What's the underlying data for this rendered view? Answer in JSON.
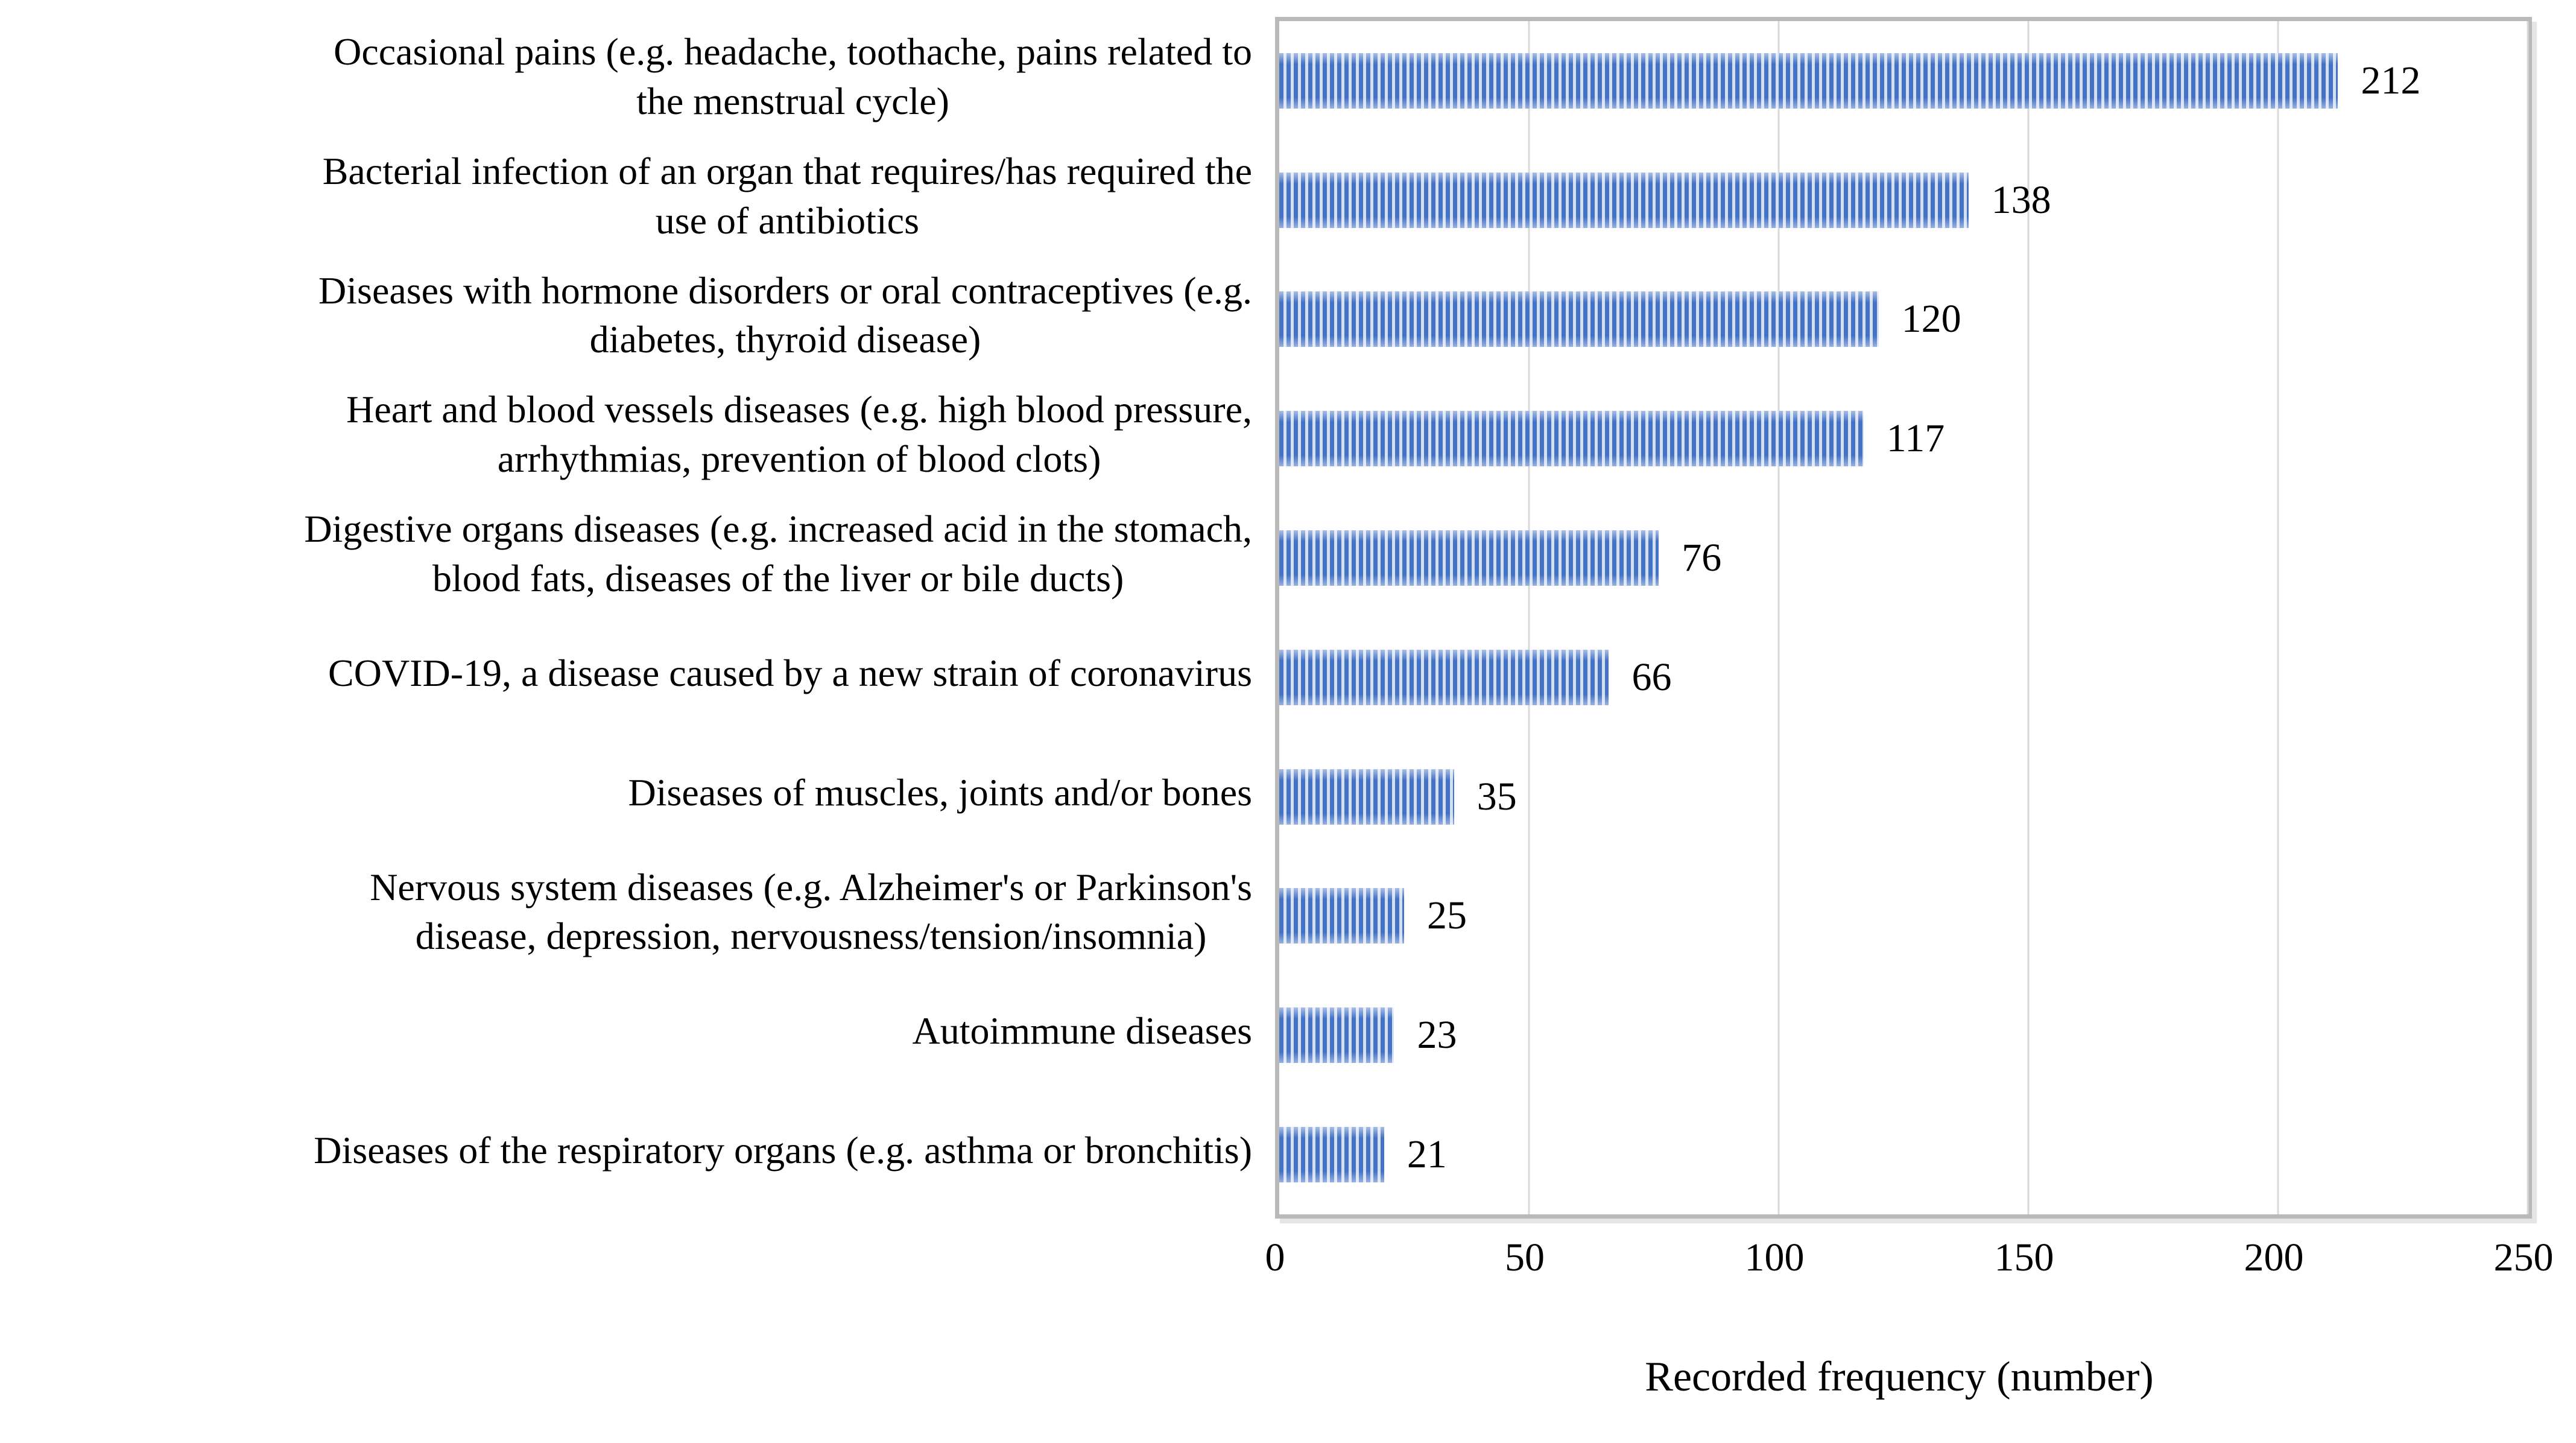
{
  "chart_data": {
    "type": "bar",
    "orientation": "horizontal",
    "title": "",
    "xlabel": "Recorded frequency (number)",
    "ylabel": "",
    "xlim": [
      0,
      250
    ],
    "xticks": [
      0,
      50,
      100,
      150,
      200,
      250
    ],
    "grid": true,
    "legend": "none",
    "bar_color": "#4472c4",
    "bar_stripe_light": "#d2def2",
    "gridline_color": "#d9d9d9",
    "frame_color": "#b9b9b9",
    "categories": [
      "Occasional pains (e.g. headache, toothache, pains related to\nthe menstrual cycle)",
      "Bacterial infection of an organ that requires/has required the\nuse of antibiotics",
      "Diseases with hormone disorders or oral contraceptives (e.g.\ndiabetes, thyroid disease)",
      "Heart and blood vessels diseases (e.g. high blood pressure,\narrhythmias, prevention of blood clots)",
      "Digestive organs diseases (e.g. increased acid in the stomach,\nblood fats, diseases of the liver or bile ducts)",
      "COVID-19, a disease caused by a new strain of coronavirus",
      "Diseases of muscles, joints and/or bones",
      "Nervous system diseases (e.g. Alzheimer's or Parkinson's\ndisease, depression, nervousness/tension/insomnia)",
      "Autoimmune diseases",
      "Diseases of the respiratory organs (e.g. asthma or bronchitis)"
    ],
    "values": [
      212,
      138,
      120,
      117,
      76,
      66,
      35,
      25,
      23,
      21
    ]
  }
}
